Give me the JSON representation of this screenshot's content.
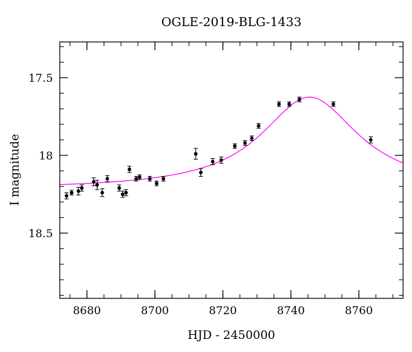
{
  "chart_data": {
    "type": "scatter",
    "title": "OGLE-2019-BLG-1433",
    "xlabel": "HJD - 2450000",
    "ylabel": "I magnitude",
    "xlim": [
      8672,
      8773
    ],
    "ylim": [
      18.92,
      17.27
    ],
    "y_inverted": true,
    "grid": false,
    "x_ticks": [
      8680,
      8700,
      8720,
      8740,
      8760
    ],
    "y_ticks": [
      17.5,
      18,
      18.5
    ],
    "x_minor_step": 5,
    "y_minor_step": 0.1,
    "colors": {
      "data": "#000000",
      "model": "#ff00ff",
      "axes": "#000000"
    },
    "series": [
      {
        "points": [
          {
            "x": 8674.0,
            "y": 18.26,
            "err": 0.02
          },
          {
            "x": 8675.5,
            "y": 18.24,
            "err": 0.015
          },
          {
            "x": 8677.5,
            "y": 18.23,
            "err": 0.025
          },
          {
            "x": 8678.5,
            "y": 18.21,
            "err": 0.02
          },
          {
            "x": 8682.0,
            "y": 18.17,
            "err": 0.025
          },
          {
            "x": 8683.0,
            "y": 18.19,
            "err": 0.03
          },
          {
            "x": 8684.5,
            "y": 18.24,
            "err": 0.025
          },
          {
            "x": 8686.0,
            "y": 18.15,
            "err": 0.02
          },
          {
            "x": 8689.5,
            "y": 18.21,
            "err": 0.02
          },
          {
            "x": 8690.5,
            "y": 18.25,
            "err": 0.02
          },
          {
            "x": 8691.5,
            "y": 18.24,
            "err": 0.02
          },
          {
            "x": 8692.5,
            "y": 18.09,
            "err": 0.02
          },
          {
            "x": 8694.5,
            "y": 18.15,
            "err": 0.015
          },
          {
            "x": 8695.5,
            "y": 18.14,
            "err": 0.015
          },
          {
            "x": 8698.5,
            "y": 18.15,
            "err": 0.015
          },
          {
            "x": 8700.5,
            "y": 18.18,
            "err": 0.015
          },
          {
            "x": 8702.5,
            "y": 18.15,
            "err": 0.015
          },
          {
            "x": 8712.0,
            "y": 17.99,
            "err": 0.035
          },
          {
            "x": 8713.5,
            "y": 18.11,
            "err": 0.025
          },
          {
            "x": 8717.0,
            "y": 18.04,
            "err": 0.02
          },
          {
            "x": 8719.5,
            "y": 18.03,
            "err": 0.02
          },
          {
            "x": 8723.5,
            "y": 17.94,
            "err": 0.015
          },
          {
            "x": 8726.5,
            "y": 17.92,
            "err": 0.015
          },
          {
            "x": 8728.5,
            "y": 17.89,
            "err": 0.015
          },
          {
            "x": 8730.5,
            "y": 17.81,
            "err": 0.015
          },
          {
            "x": 8736.5,
            "y": 17.67,
            "err": 0.015
          },
          {
            "x": 8739.5,
            "y": 17.67,
            "err": 0.015
          },
          {
            "x": 8742.5,
            "y": 17.64,
            "err": 0.015
          },
          {
            "x": 8752.5,
            "y": 17.67,
            "err": 0.015
          },
          {
            "x": 8763.5,
            "y": 17.9,
            "err": 0.02
          }
        ]
      },
      {
        "type": "line",
        "model": {
          "t0": 8745.5,
          "peak": 17.625,
          "base": 18.22,
          "tE": 17.5
        }
      }
    ]
  }
}
